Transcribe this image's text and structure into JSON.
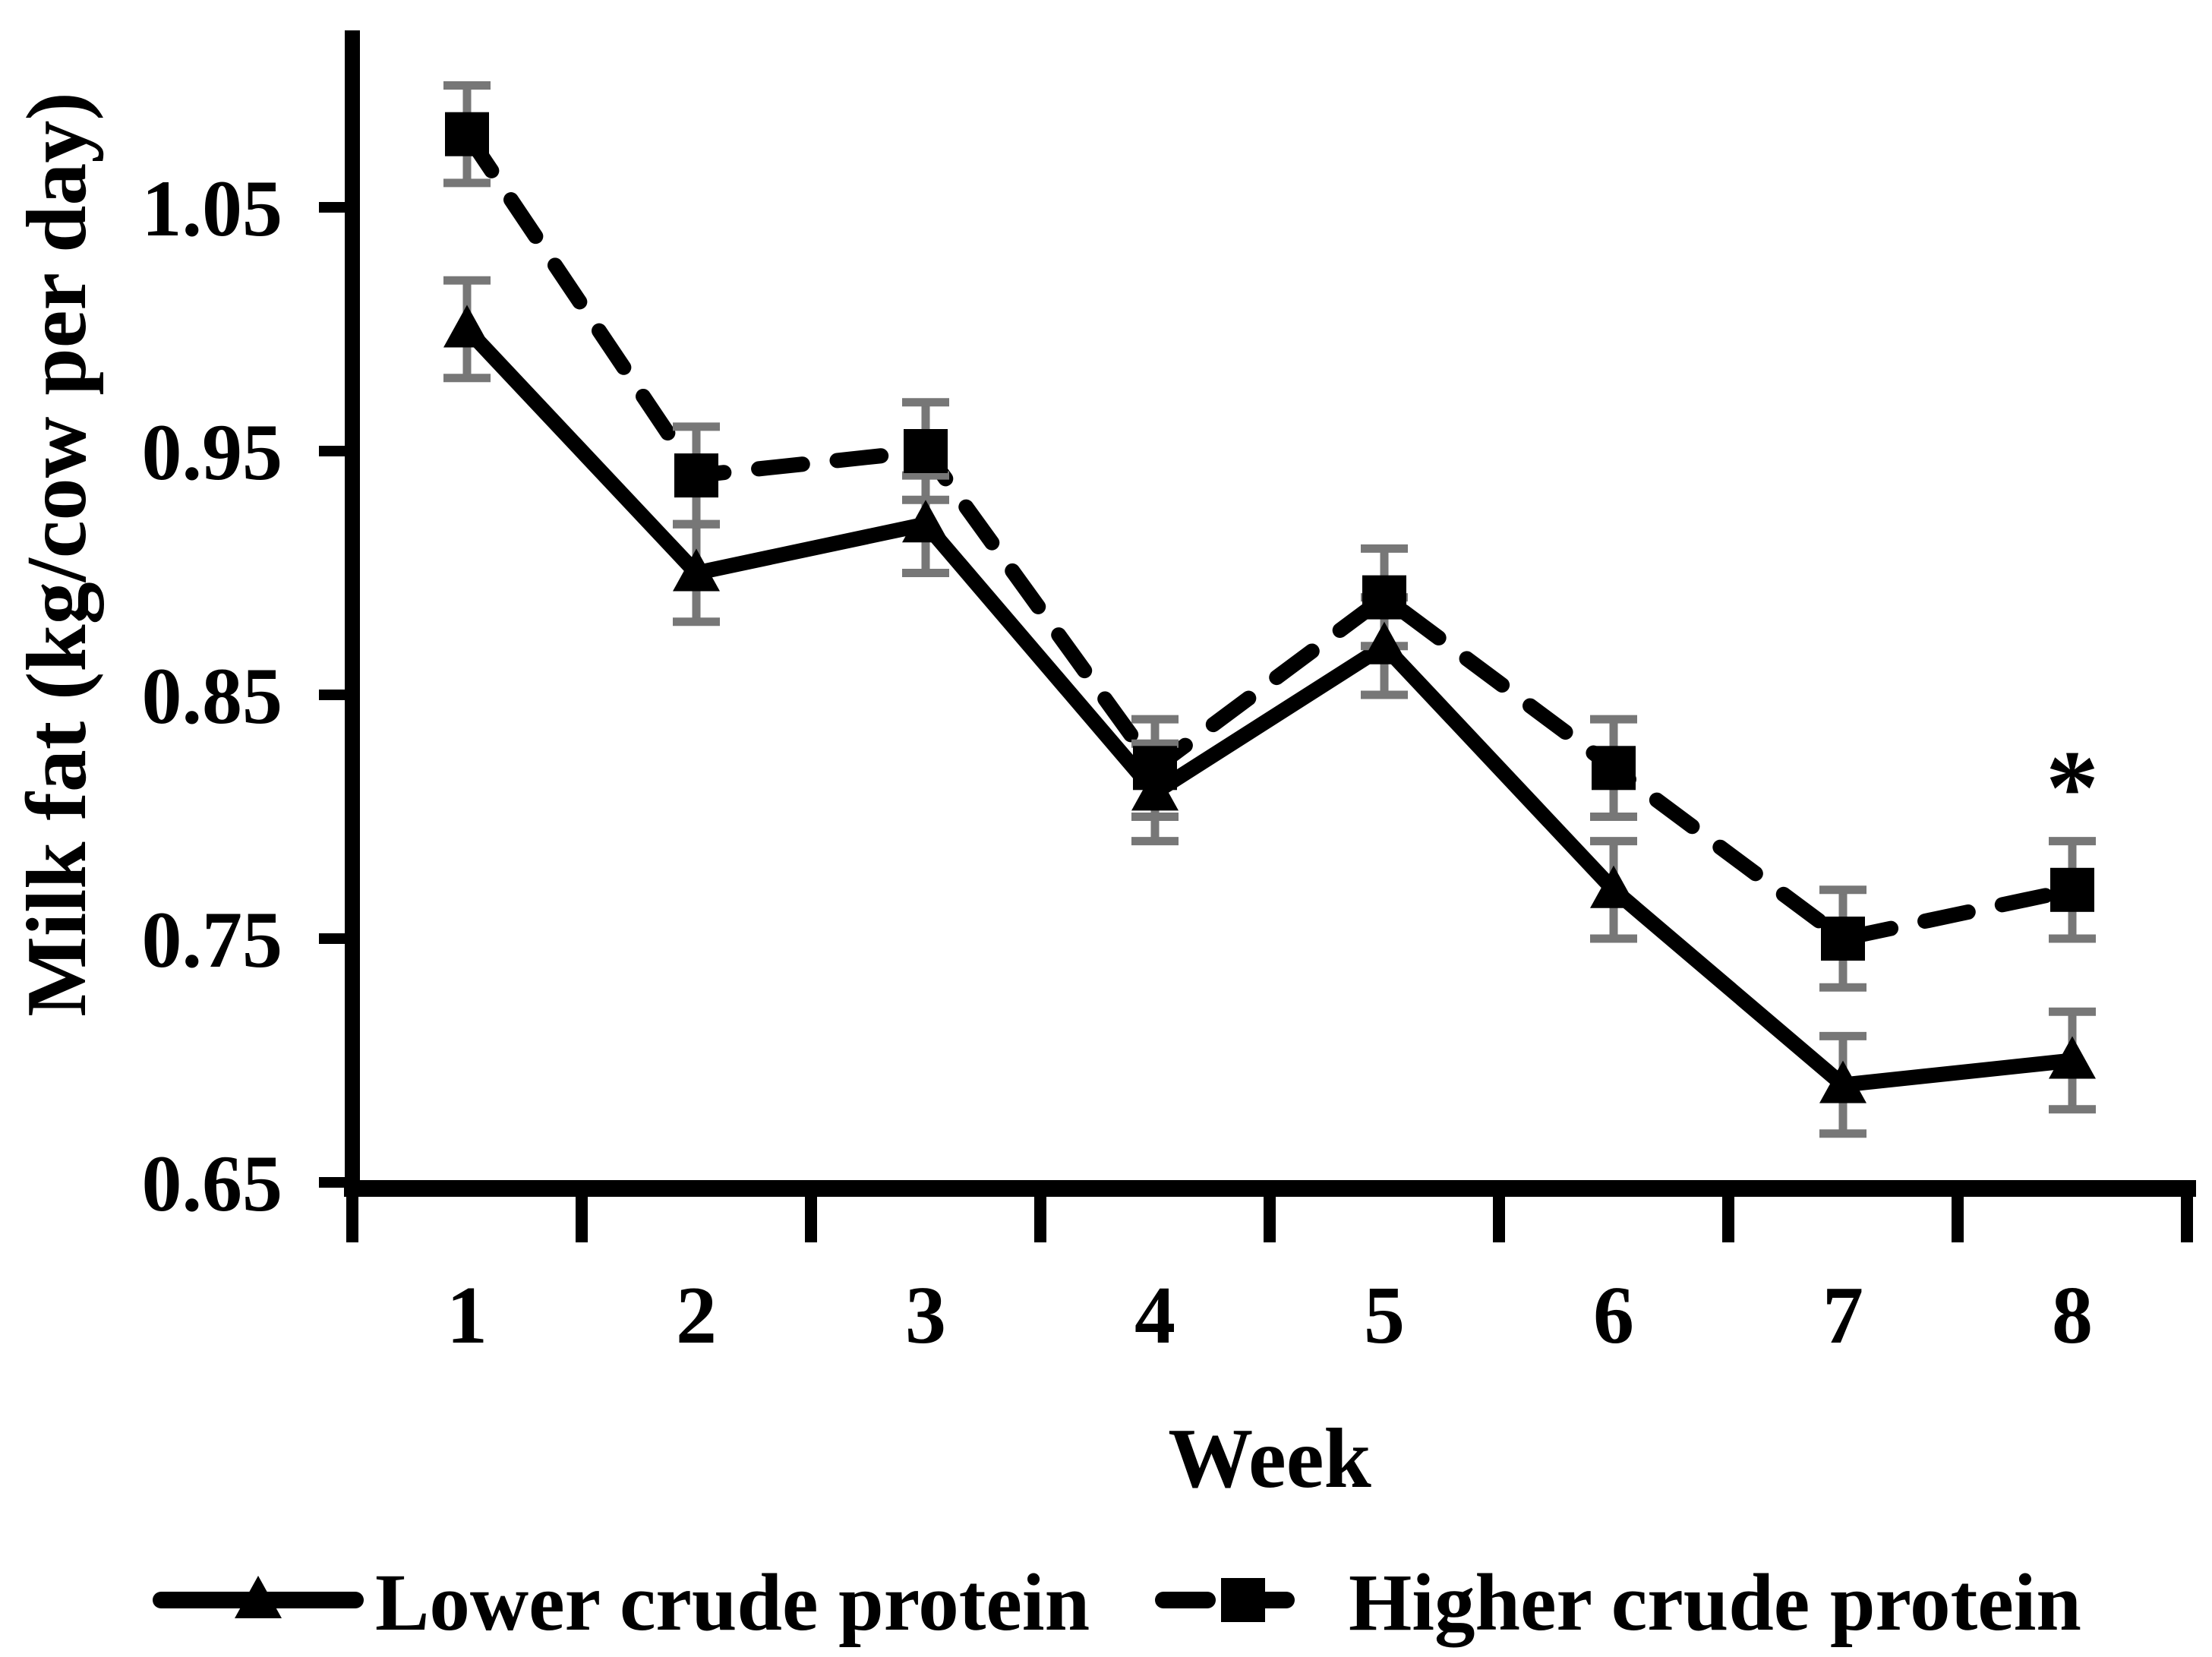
{
  "chart_data": {
    "type": "line",
    "title": "",
    "xlabel": "Week",
    "ylabel": "Milk fat (kg/cow per day)",
    "categories": [
      1,
      2,
      3,
      4,
      5,
      6,
      7,
      8
    ],
    "x_tick_labels": [
      "1",
      "2",
      "3",
      "4",
      "5",
      "6",
      "7",
      "8"
    ],
    "y_ticks": [
      0.65,
      0.75,
      0.85,
      0.95,
      1.05
    ],
    "y_tick_labels": [
      "0.65",
      "0.75",
      "0.85",
      "0.95",
      "1.05"
    ],
    "ylim": [
      0.65,
      1.122
    ],
    "grid": false,
    "legend_position": "bottom-outside",
    "background": "#ffffff",
    "axis_color": "#000000",
    "error_bar_color": "#777777",
    "series": [
      {
        "name": "Lower crude protein",
        "marker": "triangle",
        "line_style": "solid",
        "color": "#000000",
        "values": [
          1.0,
          0.9,
          0.92,
          0.81,
          0.87,
          0.77,
          0.69,
          0.7
        ],
        "error_bars": [
          0.02,
          0.02,
          0.02,
          0.02,
          0.02,
          0.02,
          0.02,
          0.02
        ]
      },
      {
        "name": "Higher crude protein",
        "marker": "square",
        "line_style": "dashed",
        "color": "#000000",
        "values": [
          1.08,
          0.94,
          0.95,
          0.82,
          0.89,
          0.82,
          0.75,
          0.77
        ],
        "error_bars": [
          0.02,
          0.02,
          0.02,
          0.02,
          0.02,
          0.02,
          0.02,
          0.02
        ]
      }
    ],
    "annotations": [
      {
        "text": "*",
        "week": 8,
        "value": 0.817
      }
    ]
  }
}
